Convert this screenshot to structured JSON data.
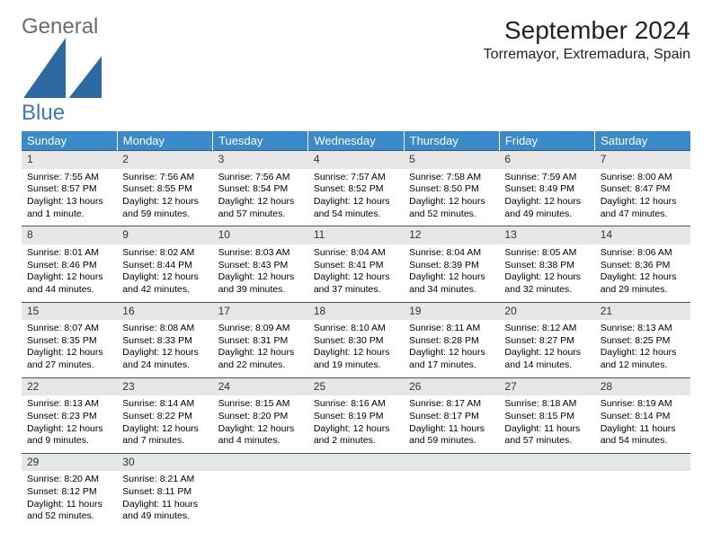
{
  "logo": {
    "text1": "General",
    "text2": "Blue"
  },
  "title": "September 2024",
  "location": "Torremayor, Extremadura, Spain",
  "colors": {
    "header_bg": "#3a89c9",
    "header_text": "#ffffff",
    "daynum_bg": "#e6e6e6",
    "row_border": "#2f5a7a",
    "logo_gray": "#6b6b6b",
    "logo_blue": "#3a7ab8"
  },
  "weekdays": [
    "Sunday",
    "Monday",
    "Tuesday",
    "Wednesday",
    "Thursday",
    "Friday",
    "Saturday"
  ],
  "weeks": [
    [
      {
        "n": "1",
        "sr": "7:55 AM",
        "ss": "8:57 PM",
        "dl": "13 hours and 1 minute."
      },
      {
        "n": "2",
        "sr": "7:56 AM",
        "ss": "8:55 PM",
        "dl": "12 hours and 59 minutes."
      },
      {
        "n": "3",
        "sr": "7:56 AM",
        "ss": "8:54 PM",
        "dl": "12 hours and 57 minutes."
      },
      {
        "n": "4",
        "sr": "7:57 AM",
        "ss": "8:52 PM",
        "dl": "12 hours and 54 minutes."
      },
      {
        "n": "5",
        "sr": "7:58 AM",
        "ss": "8:50 PM",
        "dl": "12 hours and 52 minutes."
      },
      {
        "n": "6",
        "sr": "7:59 AM",
        "ss": "8:49 PM",
        "dl": "12 hours and 49 minutes."
      },
      {
        "n": "7",
        "sr": "8:00 AM",
        "ss": "8:47 PM",
        "dl": "12 hours and 47 minutes."
      }
    ],
    [
      {
        "n": "8",
        "sr": "8:01 AM",
        "ss": "8:46 PM",
        "dl": "12 hours and 44 minutes."
      },
      {
        "n": "9",
        "sr": "8:02 AM",
        "ss": "8:44 PM",
        "dl": "12 hours and 42 minutes."
      },
      {
        "n": "10",
        "sr": "8:03 AM",
        "ss": "8:43 PM",
        "dl": "12 hours and 39 minutes."
      },
      {
        "n": "11",
        "sr": "8:04 AM",
        "ss": "8:41 PM",
        "dl": "12 hours and 37 minutes."
      },
      {
        "n": "12",
        "sr": "8:04 AM",
        "ss": "8:39 PM",
        "dl": "12 hours and 34 minutes."
      },
      {
        "n": "13",
        "sr": "8:05 AM",
        "ss": "8:38 PM",
        "dl": "12 hours and 32 minutes."
      },
      {
        "n": "14",
        "sr": "8:06 AM",
        "ss": "8:36 PM",
        "dl": "12 hours and 29 minutes."
      }
    ],
    [
      {
        "n": "15",
        "sr": "8:07 AM",
        "ss": "8:35 PM",
        "dl": "12 hours and 27 minutes."
      },
      {
        "n": "16",
        "sr": "8:08 AM",
        "ss": "8:33 PM",
        "dl": "12 hours and 24 minutes."
      },
      {
        "n": "17",
        "sr": "8:09 AM",
        "ss": "8:31 PM",
        "dl": "12 hours and 22 minutes."
      },
      {
        "n": "18",
        "sr": "8:10 AM",
        "ss": "8:30 PM",
        "dl": "12 hours and 19 minutes."
      },
      {
        "n": "19",
        "sr": "8:11 AM",
        "ss": "8:28 PM",
        "dl": "12 hours and 17 minutes."
      },
      {
        "n": "20",
        "sr": "8:12 AM",
        "ss": "8:27 PM",
        "dl": "12 hours and 14 minutes."
      },
      {
        "n": "21",
        "sr": "8:13 AM",
        "ss": "8:25 PM",
        "dl": "12 hours and 12 minutes."
      }
    ],
    [
      {
        "n": "22",
        "sr": "8:13 AM",
        "ss": "8:23 PM",
        "dl": "12 hours and 9 minutes."
      },
      {
        "n": "23",
        "sr": "8:14 AM",
        "ss": "8:22 PM",
        "dl": "12 hours and 7 minutes."
      },
      {
        "n": "24",
        "sr": "8:15 AM",
        "ss": "8:20 PM",
        "dl": "12 hours and 4 minutes."
      },
      {
        "n": "25",
        "sr": "8:16 AM",
        "ss": "8:19 PM",
        "dl": "12 hours and 2 minutes."
      },
      {
        "n": "26",
        "sr": "8:17 AM",
        "ss": "8:17 PM",
        "dl": "11 hours and 59 minutes."
      },
      {
        "n": "27",
        "sr": "8:18 AM",
        "ss": "8:15 PM",
        "dl": "11 hours and 57 minutes."
      },
      {
        "n": "28",
        "sr": "8:19 AM",
        "ss": "8:14 PM",
        "dl": "11 hours and 54 minutes."
      }
    ],
    [
      {
        "n": "29",
        "sr": "8:20 AM",
        "ss": "8:12 PM",
        "dl": "11 hours and 52 minutes."
      },
      {
        "n": "30",
        "sr": "8:21 AM",
        "ss": "8:11 PM",
        "dl": "11 hours and 49 minutes."
      },
      null,
      null,
      null,
      null,
      null
    ]
  ],
  "labels": {
    "sunrise": "Sunrise:",
    "sunset": "Sunset:",
    "daylight": "Daylight:"
  }
}
